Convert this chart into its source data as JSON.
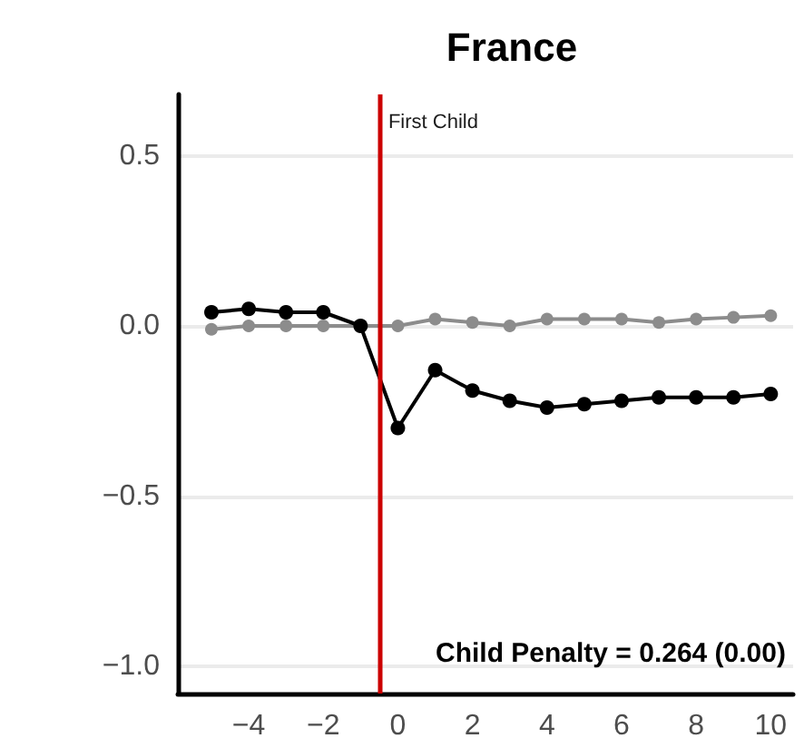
{
  "chart_data": {
    "type": "line",
    "title": "France",
    "x": [
      -5,
      -4,
      -3,
      -2,
      -1,
      0,
      1,
      2,
      3,
      4,
      5,
      6,
      7,
      8,
      9,
      10
    ],
    "series": [
      {
        "color": "#8c8c8c",
        "values": [
          -0.01,
          0.0,
          0.0,
          0.0,
          0.0,
          0.0,
          0.02,
          0.01,
          0.0,
          0.02,
          0.02,
          0.02,
          0.01,
          0.02,
          0.025,
          0.03
        ]
      },
      {
        "color": "#000000",
        "values": [
          0.04,
          0.05,
          0.04,
          0.04,
          0.0,
          -0.3,
          -0.13,
          -0.19,
          -0.22,
          -0.24,
          -0.23,
          -0.22,
          -0.21,
          -0.21,
          -0.21,
          -0.2
        ]
      }
    ],
    "xlim": [
      -5.9,
      10.6
    ],
    "ylim": [
      -1.08,
      0.68
    ],
    "xticks": [
      {
        "value": -4,
        "label": "−4"
      },
      {
        "value": -2,
        "label": "−2"
      },
      0,
      2,
      4,
      6,
      8,
      10
    ],
    "yticks": [
      {
        "value": -1,
        "label": "−1.0"
      },
      {
        "value": -0.5,
        "label": "−0.5"
      },
      {
        "value": 0,
        "label": "0.0"
      },
      0.5
    ],
    "grid": "y",
    "marker": "circle",
    "line_style": "solid",
    "ref_lines": [
      {
        "axis": "x",
        "value": -0.5,
        "label": "First Child",
        "color": "#cc0000"
      }
    ],
    "annotations": [
      "Child Penalty = 0.264 (0.00)"
    ]
  }
}
